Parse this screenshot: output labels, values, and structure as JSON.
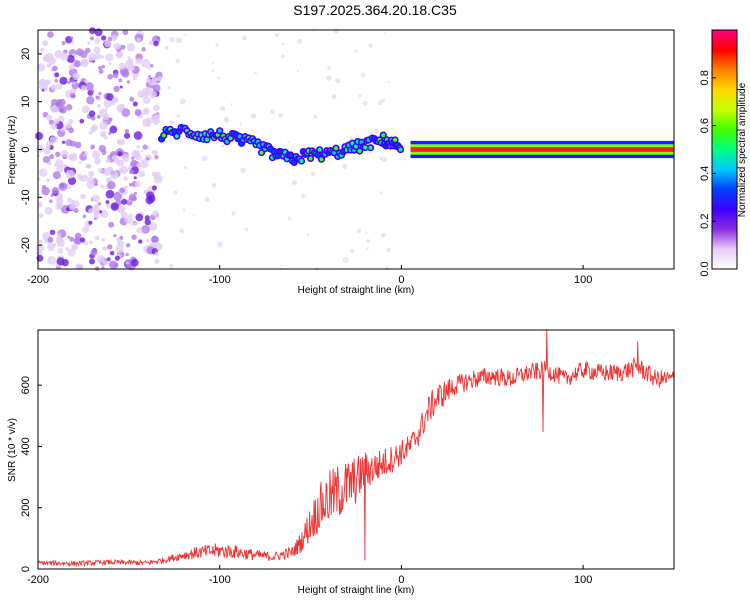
{
  "title": "S197.2025.364.20.18.C35",
  "chart_data": [
    {
      "type": "heatmap",
      "xlabel": "Height of straight line (km)",
      "ylabel": "Frequency (Hz)",
      "xlim": [
        -200,
        150
      ],
      "ylim": [
        -25,
        25
      ],
      "xticks": [
        -200,
        -100,
        0,
        100
      ],
      "yticks": [
        -20,
        -10,
        0,
        10,
        20
      ],
      "colorbar": {
        "label": "Normalized spectral amplitude",
        "range": [
          0,
          1
        ],
        "ticks": [
          0.0,
          0.2,
          0.4,
          0.6,
          0.8
        ],
        "colors": [
          "#ffffff",
          "#e6ccf5",
          "#8a2be2",
          "#3b00ff",
          "#0040ff",
          "#00c8ff",
          "#00ff80",
          "#40ff00",
          "#c8ff00",
          "#ffd700",
          "#ff7f00",
          "#ff0000",
          "#ff0080"
        ]
      },
      "features": [
        {
          "name": "noise",
          "x_range": [
            -200,
            -133
          ],
          "freq_range": [
            -25,
            25
          ],
          "amplitude": 0.1
        },
        {
          "name": "ridge",
          "points": [
            [
              -132,
              3
            ],
            [
              -120,
              4
            ],
            [
              -110,
              3
            ],
            [
              -100,
              3
            ],
            [
              -90,
              2
            ],
            [
              -80,
              1
            ],
            [
              -70,
              -1
            ],
            [
              -60,
              -2
            ],
            [
              -50,
              -1
            ],
            [
              -40,
              -1
            ],
            [
              -30,
              0
            ],
            [
              -20,
              1
            ],
            [
              -10,
              2
            ],
            [
              -5,
              1
            ],
            [
              0,
              1
            ]
          ],
          "amplitude": 0.5
        },
        {
          "name": "carrier",
          "x_range": [
            5,
            150
          ],
          "freq": 0,
          "amplitude": 0.9
        }
      ]
    },
    {
      "type": "line",
      "xlabel": "Height of straight line (km)",
      "ylabel": "SNR (10 * v/v)",
      "xlim": [
        -200,
        150
      ],
      "ylim": [
        0,
        780
      ],
      "xticks": [
        -200,
        -100,
        0,
        100
      ],
      "yticks": [
        0,
        200,
        400,
        600
      ],
      "series": [
        {
          "name": "SNR",
          "color": "#ee3333",
          "x": [
            -200,
            -180,
            -160,
            -140,
            -130,
            -120,
            -110,
            -100,
            -90,
            -80,
            -70,
            -60,
            -55,
            -50,
            -45,
            -40,
            -35,
            -30,
            -25,
            -20,
            -15,
            -10,
            -5,
            0,
            5,
            10,
            15,
            20,
            25,
            30,
            35,
            40,
            50,
            60,
            70,
            80,
            90,
            100,
            110,
            120,
            130,
            140,
            150
          ],
          "y": [
            20,
            18,
            22,
            20,
            30,
            45,
            55,
            60,
            55,
            45,
            40,
            55,
            90,
            150,
            200,
            230,
            250,
            270,
            290,
            320,
            330,
            345,
            360,
            380,
            400,
            450,
            520,
            560,
            580,
            600,
            610,
            620,
            630,
            620,
            640,
            650,
            620,
            650,
            640,
            640,
            660,
            620,
            620
          ],
          "noise": [
            8,
            8,
            8,
            8,
            10,
            15,
            22,
            25,
            22,
            18,
            15,
            20,
            35,
            60,
            80,
            90,
            95,
            90,
            80,
            65,
            55,
            50,
            45,
            42,
            42,
            45,
            48,
            48,
            42,
            32,
            32,
            32,
            30,
            30,
            30,
            30,
            28,
            30,
            30,
            30,
            32,
            30,
            30
          ],
          "spikes": [
            {
              "x": 80,
              "y": 780
            },
            {
              "x": 78,
              "y": 450
            },
            {
              "x": 130,
              "y": 740
            },
            {
              "x": -20,
              "y": 30
            }
          ]
        }
      ]
    }
  ]
}
